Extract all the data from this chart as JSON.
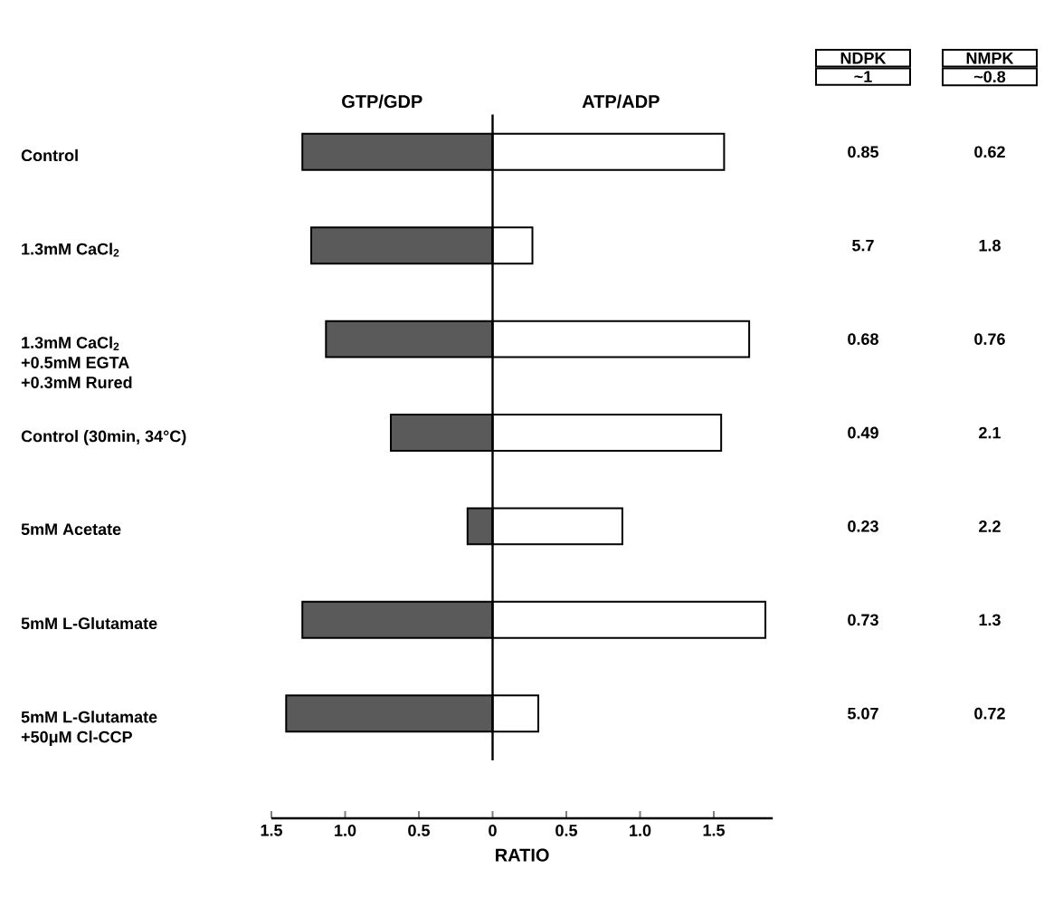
{
  "chart_data": {
    "type": "bar",
    "orientation": "horizontal",
    "stacked": true,
    "xlabel": "RATIO",
    "categories": [
      "Control",
      "1.3mM CaCl$_{2}$",
      "1.3mM CaCl$_{2}$\n+0.5mM EGTA\n+0.3mM Rured",
      "Control (30min, 34°C)",
      "5mM Acetate",
      "5mM L-Glutamate",
      "5mM L-Glutamate\n+50μM Cl-CCP"
    ],
    "series": [
      {
        "name": "GTP/GDP",
        "color": "#5a5a5a",
        "values": [
          -1.29,
          -1.23,
          -1.13,
          -0.69,
          -0.17,
          -1.29,
          -1.4
        ]
      },
      {
        "name": "ATP/ADP",
        "color": "#ffffff",
        "values": [
          1.57,
          0.27,
          1.74,
          1.55,
          0.88,
          1.85,
          0.31
        ]
      }
    ],
    "xlim": [
      -1.5,
      1.9
    ],
    "xticks": [
      {
        "value": -1.5,
        "label": "1.5"
      },
      {
        "value": -1,
        "label": "1.0"
      },
      {
        "value": -0.5,
        "label": "0.5"
      },
      0,
      0.5,
      {
        "value": 1,
        "label": "1.0"
      },
      1.5
    ],
    "ref_lines": [
      {
        "axis": "x",
        "value": 0
      }
    ],
    "annotations": [
      "NDPK",
      "~1",
      "NMPK",
      "~0.8",
      "0.85",
      "0.62",
      "5.7",
      "1.8",
      "0.68",
      "0.76",
      "0.49",
      "2.1",
      "0.23",
      "2.2",
      "0.73",
      "1.3",
      "5.07",
      "0.72"
    ]
  }
}
